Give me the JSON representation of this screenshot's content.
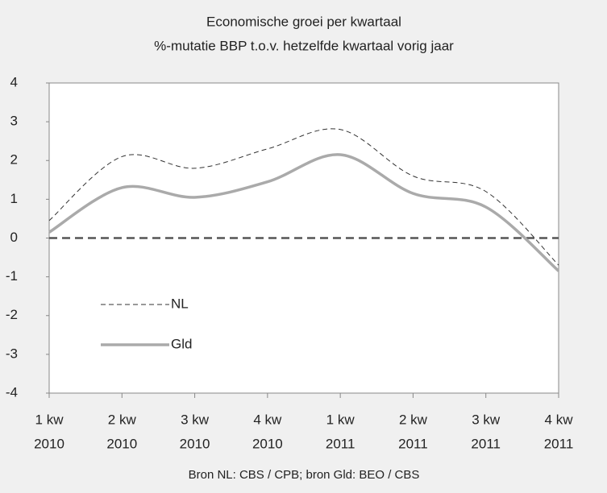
{
  "chart_data": {
    "type": "line",
    "title": "Economische groei per kwartaal",
    "subtitle": "%-mutatie BBP  t.o.v. hetzelfde kwartaal vorig jaar",
    "source": "Bron NL: CBS / CPB; bron Gld: BEO / CBS",
    "categories": [
      [
        "1 kw",
        "2010"
      ],
      [
        "2 kw",
        "2010"
      ],
      [
        "3 kw",
        "2010"
      ],
      [
        "4 kw",
        "2010"
      ],
      [
        "1 kw",
        "2011"
      ],
      [
        "2 kw",
        "2011"
      ],
      [
        "3 kw",
        "2011"
      ],
      [
        "4 kw",
        "2011"
      ]
    ],
    "series": [
      {
        "name": "NL",
        "color": "#333333",
        "style": "dashed",
        "values": [
          0.45,
          2.1,
          1.8,
          2.3,
          2.8,
          1.6,
          1.2,
          -0.7
        ]
      },
      {
        "name": "Gld",
        "color": "#aaaaaa",
        "style": "solid",
        "values": [
          0.15,
          1.3,
          1.05,
          1.45,
          2.15,
          1.15,
          0.8,
          -0.85
        ]
      }
    ],
    "ylim": [
      -4,
      4
    ],
    "yticks": [
      -4,
      -3,
      -2,
      -1,
      0,
      1,
      2,
      3,
      4
    ],
    "zero_line": true,
    "smooth": true
  }
}
